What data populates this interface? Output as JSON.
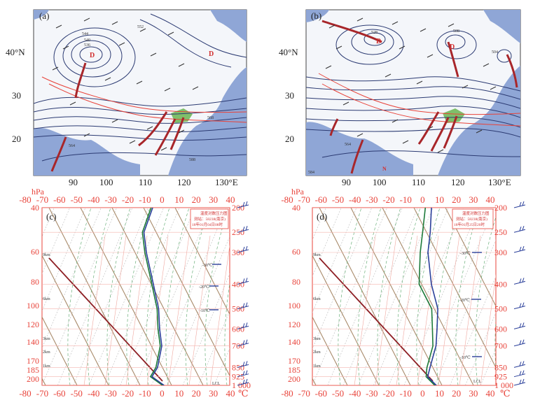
{
  "maps": [
    {
      "id": "a",
      "panel_label": "(a)",
      "contour_labels": [
        "552",
        "544",
        "540",
        "536",
        "564",
        "568",
        "588"
      ],
      "low_labels": [
        "D",
        "D"
      ]
    },
    {
      "id": "b",
      "panel_label": "(b)",
      "contour_labels": [
        "528",
        "508",
        "504",
        "564",
        "584"
      ],
      "low_labels": [
        "D",
        "D"
      ],
      "extra_label": "N"
    }
  ],
  "map_axes": {
    "lat_labels": [
      "40°N",
      "30",
      "20"
    ],
    "lon_labels": [
      "90",
      "100",
      "110",
      "120",
      "130°E"
    ]
  },
  "soundings": [
    {
      "id": "c",
      "panel_label": "(c)",
      "info_lines": [
        "温度对数压力图",
        "测站：58238(南京)",
        "18年01月04日08时"
      ],
      "isotherm_labels": [
        "-30℃",
        "-20℃",
        "-10℃"
      ],
      "height_labels": [
        "9km",
        "6km",
        "3km",
        "2km",
        "1km"
      ],
      "bottom_label": "LCL"
    },
    {
      "id": "d",
      "panel_label": "(d)",
      "info_lines": [
        "温度对数压力图",
        "测站：58238(南京)",
        "18年01月25日20时"
      ],
      "isotherm_labels": [
        "-30℃",
        "-20℃",
        "-10℃"
      ],
      "height_labels": [
        "9km",
        "6km",
        "3km",
        "2km",
        "1km"
      ],
      "bottom_label": "LCL"
    }
  ],
  "skewt_axes": {
    "pressure_unit": "hPa",
    "temp_unit": "℃",
    "temp_ticks": [
      "-80",
      "-70",
      "-60",
      "-50",
      "-40",
      "-30",
      "-20",
      "-10",
      "0",
      "10",
      "20",
      "30",
      "40"
    ],
    "left_pressure_ticks": [
      "40",
      "60",
      "80",
      "100",
      "120",
      "140",
      "170",
      "185",
      "200"
    ],
    "right_pressure_ticks": [
      "200",
      "250",
      "300",
      "400",
      "500",
      "600",
      "700",
      "850",
      "925",
      "1 000"
    ]
  },
  "chart_data": [
    {
      "type": "line",
      "panel": "c",
      "title": "",
      "xlabel": "℃",
      "ylabel": "hPa",
      "xlim": [
        -80,
        40
      ],
      "pressure_levels_hPa": [
        200,
        250,
        300,
        400,
        500,
        600,
        700,
        850,
        925,
        1000
      ],
      "series": [
        {
          "name": "",
          "color": "#1d7a3a",
          "temp_C": [
            -58,
            -57,
            -50,
            -37,
            -27,
            -21,
            -15,
            -12,
            -13,
            -3
          ]
        },
        {
          "name": "",
          "color": "#2a3f9a",
          "temp_C": [
            -57,
            -56,
            -49,
            -36,
            -26,
            -20,
            -14,
            -11,
            -12,
            -2
          ]
        }
      ],
      "note_upper_stratosphere": {
        "upper_levels_hPa": [
          40,
          60,
          80,
          100,
          120,
          140,
          170,
          185,
          200
        ],
        "temp_green_C": [
          -70,
          -67,
          -60,
          -60,
          -62,
          -59,
          -60,
          -58,
          -57
        ],
        "temp_blue_C": [
          -50,
          -55,
          -62,
          -63,
          -68,
          -70,
          -71,
          -68,
          -58
        ]
      }
    },
    {
      "type": "line",
      "panel": "d",
      "title": "",
      "xlabel": "℃",
      "ylabel": "hPa",
      "xlim": [
        -80,
        40
      ],
      "pressure_levels_hPa": [
        200,
        250,
        300,
        400,
        500,
        600,
        700,
        850,
        925,
        1000
      ],
      "series": [
        {
          "name": "",
          "color": "#1d7a3a",
          "temp_C": [
            -55,
            -50,
            -46,
            -38,
            -23,
            -17,
            -12,
            -10,
            -8,
            0
          ]
        },
        {
          "name": "",
          "color": "#2a3f9a",
          "temp_C": [
            -51,
            -45,
            -41,
            -30,
            -19,
            -14,
            -10,
            -8,
            -7,
            1
          ]
        }
      ]
    }
  ]
}
